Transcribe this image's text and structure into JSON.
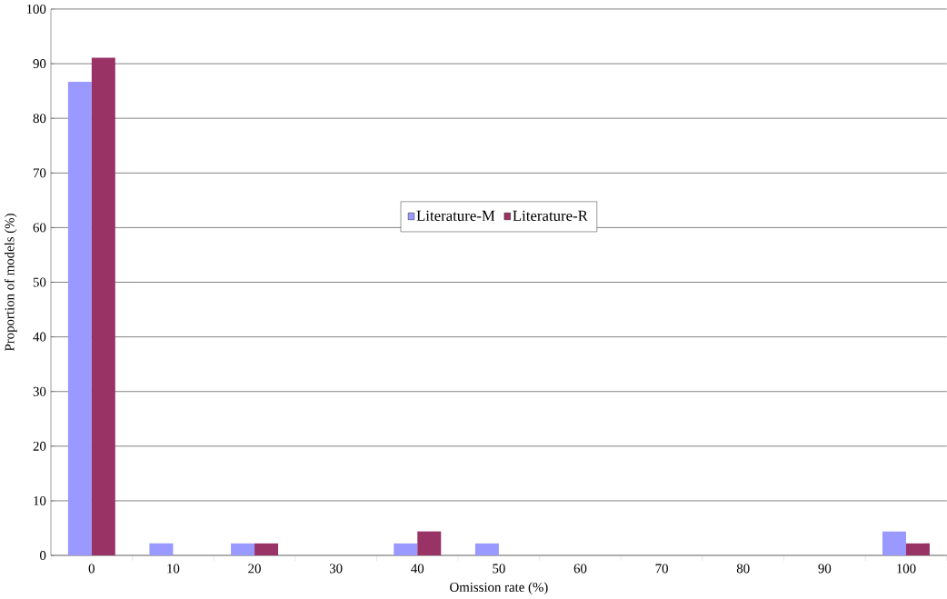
{
  "chart_data": {
    "type": "bar",
    "xlabel": "Omission rate (%)",
    "ylabel": "Proportion of models (%)",
    "categories": [
      "0",
      "10",
      "20",
      "30",
      "40",
      "50",
      "60",
      "70",
      "80",
      "90",
      "100"
    ],
    "series": [
      {
        "name": "Literature-M",
        "color": "#9999ff",
        "values": [
          86.7,
          2.2,
          2.2,
          0,
          2.2,
          2.2,
          0,
          0,
          0,
          0,
          4.4
        ]
      },
      {
        "name": "Literature-R",
        "color": "#993366",
        "values": [
          91.1,
          0,
          2.2,
          0,
          4.4,
          0,
          0,
          0,
          0,
          0,
          2.2
        ]
      }
    ],
    "ylim": [
      0,
      100
    ],
    "yticks": [
      0,
      10,
      20,
      30,
      40,
      50,
      60,
      70,
      80,
      90,
      100
    ],
    "grid": "y",
    "legend": "center"
  }
}
